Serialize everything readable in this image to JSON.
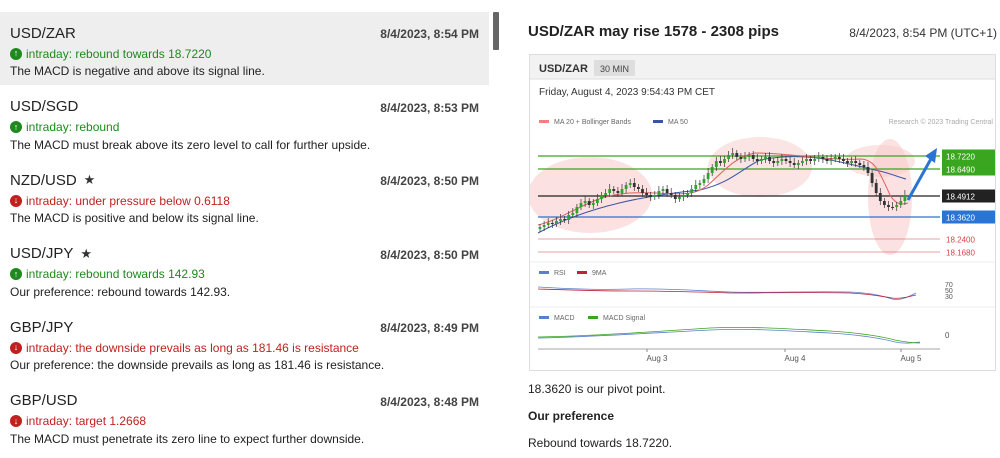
{
  "feed": {
    "items": [
      {
        "symbol": "USD/ZAR",
        "starred": false,
        "time": "8/4/2023, 8:54 PM",
        "direction": "up",
        "trend": "intraday: rebound towards 18.7220",
        "text": "The MACD is negative and above its signal line.",
        "selected": true
      },
      {
        "symbol": "USD/SGD",
        "starred": false,
        "time": "8/4/2023, 8:53 PM",
        "direction": "up",
        "trend": "intraday: rebound",
        "text": "The MACD must break above its zero level to call for further upside.",
        "selected": false
      },
      {
        "symbol": "NZD/USD",
        "starred": true,
        "time": "8/4/2023, 8:50 PM",
        "direction": "down",
        "trend": "intraday: under pressure below 0.6118",
        "text": "The MACD is positive and below its signal line.",
        "selected": false
      },
      {
        "symbol": "USD/JPY",
        "starred": true,
        "time": "8/4/2023, 8:50 PM",
        "direction": "up",
        "trend": "intraday: rebound towards 142.93",
        "text": "Our preference: rebound towards 142.93.",
        "selected": false
      },
      {
        "symbol": "GBP/JPY",
        "starred": false,
        "time": "8/4/2023, 8:49 PM",
        "direction": "down",
        "trend": "intraday: the downside prevails as long as 181.46 is resistance",
        "text": "Our preference: the downside prevails as long as 181.46 is resistance.",
        "selected": false
      },
      {
        "symbol": "GBP/USD",
        "starred": false,
        "time": "8/4/2023, 8:48 PM",
        "direction": "down",
        "trend": "intraday: target 1.2668",
        "text": "The MACD must penetrate its zero line to expect further downside.",
        "selected": false
      }
    ]
  },
  "detail": {
    "title": "USD/ZAR may rise 1578 - 2308 pips",
    "time": "8/4/2023, 8:54 PM (UTC+1)",
    "pivot_text": "18.3620 is our pivot point.",
    "preference_heading": "Our preference",
    "preference_text": "Rebound towards 18.7220."
  },
  "chart": {
    "symbol": "USD/ZAR",
    "timeframe": "30 MIN",
    "datetime": "Friday, August 4, 2023 9:54:43 PM CET",
    "legend_bb": "MA 20 + Bollinger Bands",
    "legend_ma50": "MA 50",
    "copyright": "Research © 2023 Trading Central",
    "levels": [
      {
        "label": "18.7220",
        "kind": "target",
        "color": "#3aa51f"
      },
      {
        "label": "18.6490",
        "kind": "target",
        "color": "#3aa51f"
      },
      {
        "label": "18.4912",
        "kind": "last",
        "color": "#222222"
      },
      {
        "label": "18.3620",
        "kind": "pivot",
        "color": "#2a74d4"
      },
      {
        "label": "18.2400",
        "kind": "support",
        "color": "#d64545"
      },
      {
        "label": "18.1680",
        "kind": "support",
        "color": "#d64545"
      }
    ],
    "rsi_legend": "RSI",
    "rsi_ma_legend": "9MA",
    "rsi_ticks": [
      "70",
      "50",
      "30"
    ],
    "macd_legend": "MACD",
    "macd_signal_legend": "MACD Signal",
    "macd_tick": "0",
    "x_labels": [
      "Aug 3",
      "Aug 4",
      "Aug 5"
    ],
    "colors": {
      "bb": "#f08080",
      "ma50": "#3a55a4",
      "rsi": "#5b7fd0",
      "rsi_ma": "#c0203a",
      "macd": "#5b7fd0",
      "macd_signal": "#3aa51f"
    }
  },
  "icons": {
    "up": "arrow-up-circle-icon",
    "down": "arrow-down-circle-icon",
    "star": "star-icon"
  }
}
